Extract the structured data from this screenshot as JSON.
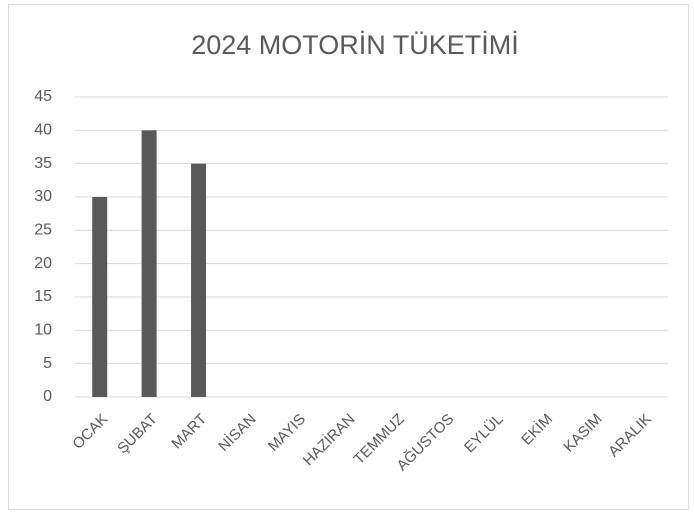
{
  "chart_data": {
    "type": "bar",
    "title": "2024 MOTORİN TÜKETİMİ",
    "categories": [
      "OCAK",
      "ŞUBAT",
      "MART",
      "NİSAN",
      "MAYIS",
      "HAZİRAN",
      "TEMMUZ",
      "AĞUSTOS",
      "EYLÜL",
      "EKİM",
      "KASIM",
      "ARALIK"
    ],
    "values": [
      30,
      40,
      35,
      null,
      null,
      null,
      null,
      null,
      null,
      null,
      null,
      null
    ],
    "color": "#595959",
    "ylim": [
      0,
      45
    ],
    "yticks": [
      0,
      5,
      10,
      15,
      20,
      25,
      30,
      35,
      40,
      45
    ],
    "grid": true
  }
}
